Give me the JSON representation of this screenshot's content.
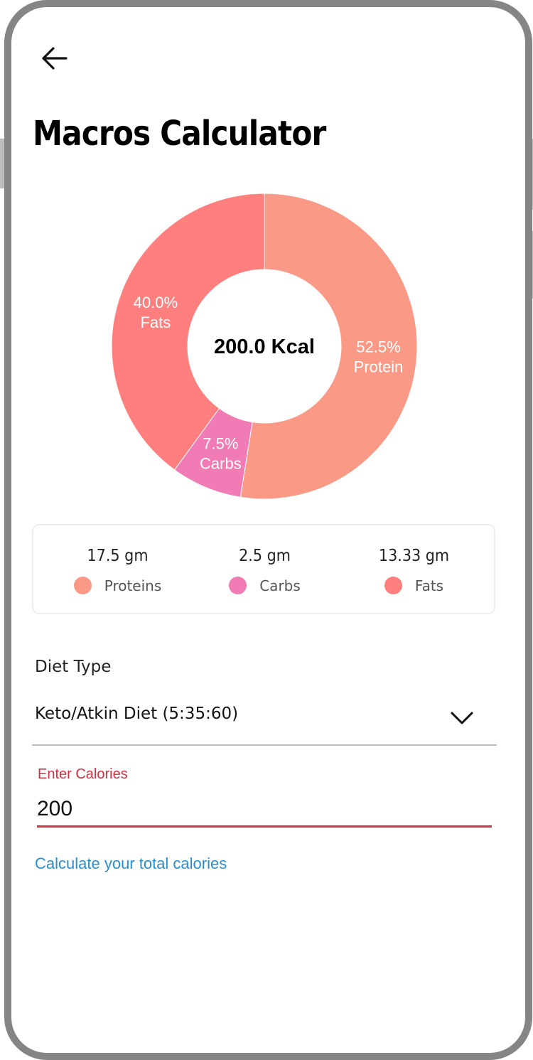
{
  "header": {
    "back_icon": "arrow-left-icon",
    "title": "Macros Calculator"
  },
  "chart_data": {
    "type": "pie",
    "variant": "donut",
    "center_label": "200.0 Kcal",
    "slices": [
      {
        "label": "Protein",
        "percent_label": "52.5%",
        "value": 52.5,
        "color": "#FA9A86"
      },
      {
        "label": "Carbs",
        "percent_label": "7.5%",
        "value": 7.5,
        "color": "#F07BB5"
      },
      {
        "label": "Fats",
        "percent_label": "40.0%",
        "value": 40.0,
        "color": "#FF7F7E"
      }
    ]
  },
  "legend": [
    {
      "value": "17.5 gm",
      "name": "Proteins",
      "color": "#FA9A86"
    },
    {
      "value": "2.5 gm",
      "name": "Carbs",
      "color": "#F07BB5"
    },
    {
      "value": "13.33 gm",
      "name": "Fats",
      "color": "#FF7F7E"
    }
  ],
  "diet": {
    "label": "Diet Type",
    "selected": "Keto/Atkin Diet (5:35:60)",
    "icon": "chevron-down-icon"
  },
  "calories": {
    "label": "Enter Calories",
    "value": "200"
  },
  "link": {
    "label": "Calculate your total calories"
  },
  "colors": {
    "accent_red": "#D32F3F",
    "link_blue": "#2A8FD0"
  }
}
